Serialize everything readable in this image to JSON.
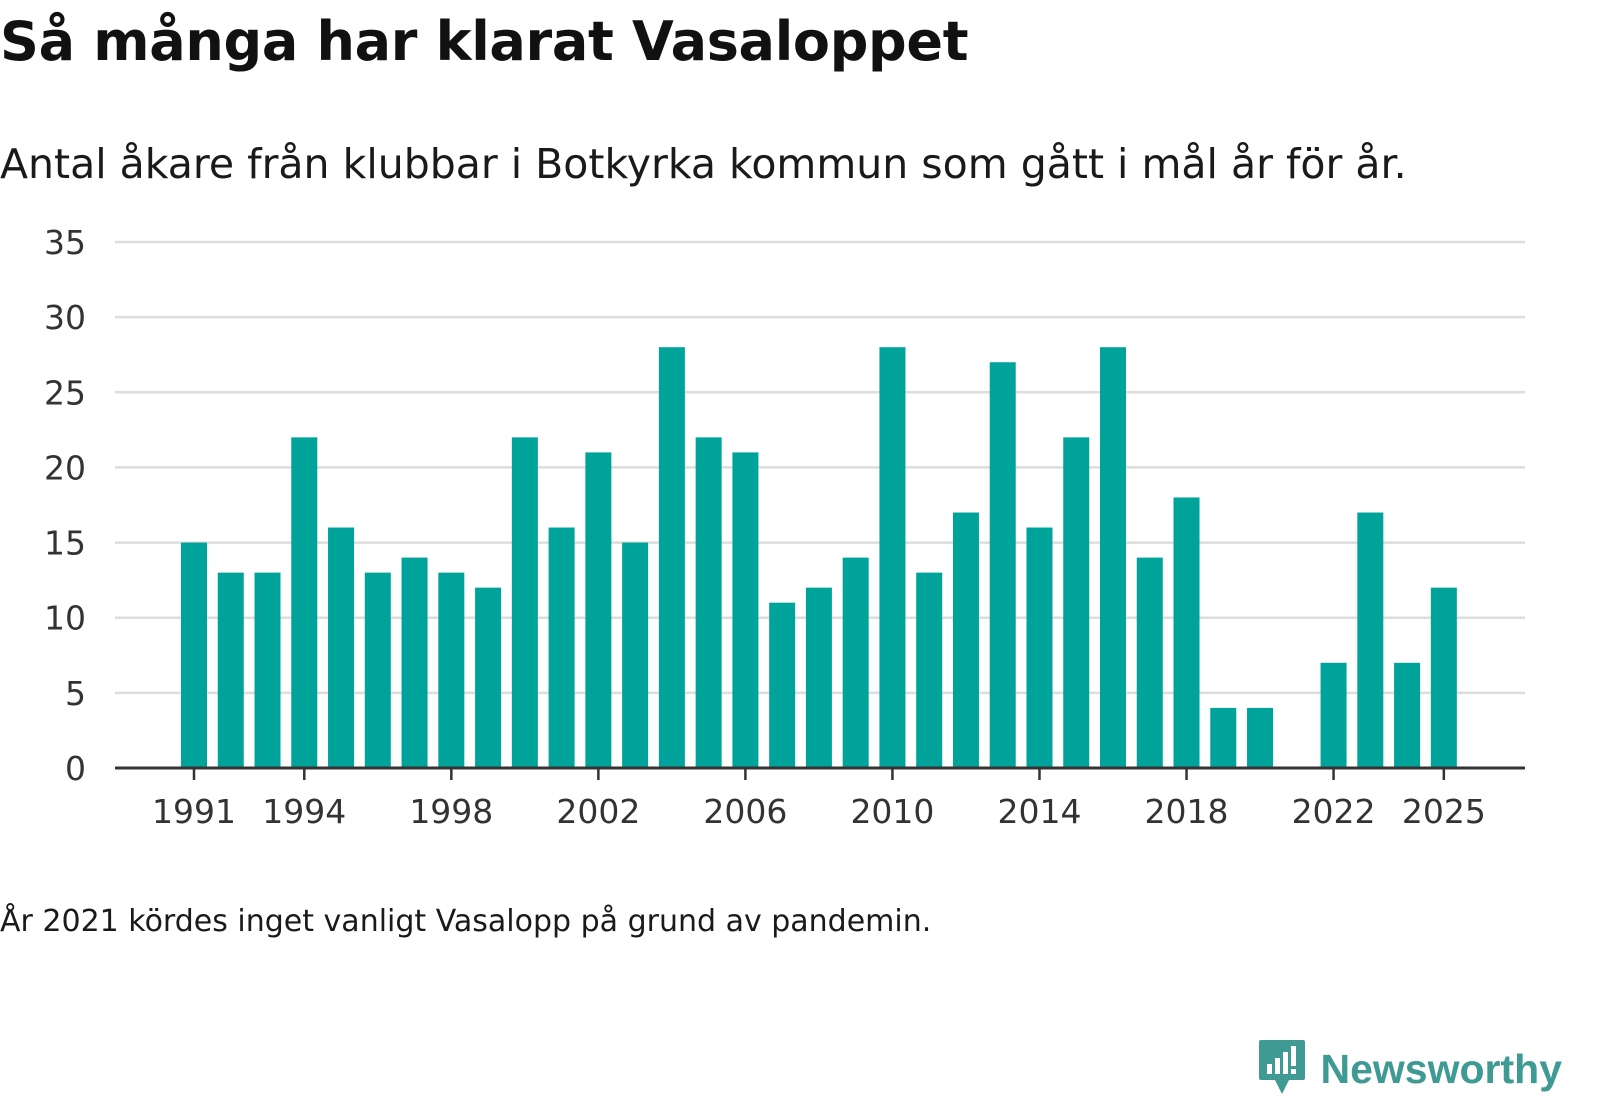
{
  "title": "Så många har klarat Vasaloppet",
  "subtitle": "Antal åkare från klubbar i Botkyrka kommun som gått i mål år för år.",
  "note": "År 2021 kördes inget vanligt Vasalopp på grund av pandemin.",
  "brand": {
    "name": "Newsworthy",
    "icon": "newsworthy-logo-icon",
    "color": "#3f9a94"
  },
  "chart_data": {
    "type": "bar",
    "title": "Så många har klarat Vasaloppet",
    "xlabel": "",
    "ylabel": "",
    "categories": [
      1991,
      1992,
      1993,
      1994,
      1995,
      1996,
      1997,
      1998,
      1999,
      2000,
      2001,
      2002,
      2003,
      2004,
      2005,
      2006,
      2007,
      2008,
      2009,
      2010,
      2011,
      2012,
      2013,
      2014,
      2015,
      2016,
      2017,
      2018,
      2019,
      2020,
      2021,
      2022,
      2023,
      2024,
      2025
    ],
    "values": [
      15,
      13,
      13,
      22,
      16,
      13,
      14,
      13,
      12,
      22,
      16,
      21,
      15,
      28,
      22,
      21,
      11,
      12,
      14,
      28,
      13,
      17,
      27,
      16,
      22,
      28,
      14,
      18,
      4,
      4,
      null,
      7,
      17,
      7,
      12
    ],
    "ylim": [
      0,
      35
    ],
    "yticks": [
      0,
      5,
      10,
      15,
      20,
      25,
      30,
      35
    ],
    "xticks": [
      1991,
      1994,
      1998,
      2002,
      2006,
      2010,
      2014,
      2018,
      2022,
      2025
    ],
    "grid": true,
    "bar_color": "#00a39a",
    "grid_color": "#dddddd",
    "axis_color": "#333333"
  }
}
